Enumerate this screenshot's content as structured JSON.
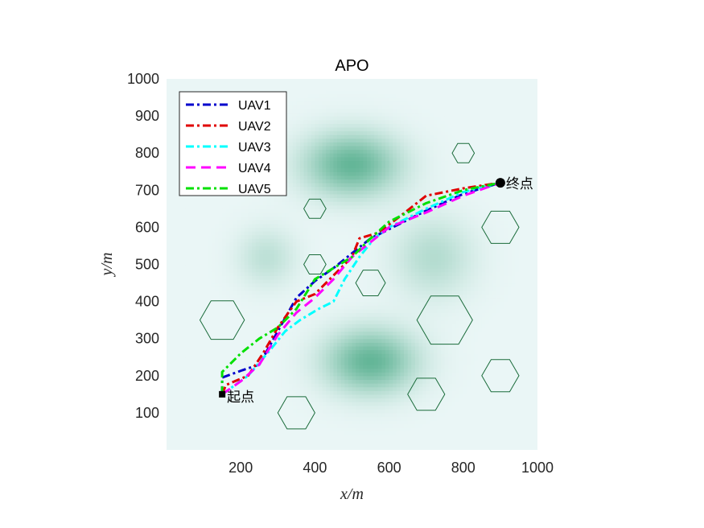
{
  "chart_data": {
    "type": "line",
    "title": "APO",
    "xlabel": "x/m",
    "ylabel": "y/m",
    "xlim": [
      0,
      1000
    ],
    "ylim": [
      0,
      1000
    ],
    "xticks": [
      200,
      400,
      600,
      800,
      1000
    ],
    "yticks": [
      100,
      200,
      300,
      400,
      500,
      600,
      700,
      800,
      900,
      1000
    ],
    "grid": false,
    "legend_position": "top-left",
    "start": {
      "label": "起点",
      "x": 150,
      "y": 150
    },
    "goal": {
      "label": "终点",
      "x": 900,
      "y": 720
    },
    "threat_zones": [
      {
        "x": 500,
        "y": 770,
        "sx": 90,
        "sy": 60,
        "peak": 0.75
      },
      {
        "x": 550,
        "y": 240,
        "sx": 85,
        "sy": 60,
        "peak": 0.75
      },
      {
        "x": 270,
        "y": 520,
        "sx": 55,
        "sy": 55,
        "peak": 0.25
      },
      {
        "x": 720,
        "y": 520,
        "sx": 75,
        "sy": 75,
        "peak": 0.3
      }
    ],
    "obstacles": [
      {
        "x": 150,
        "y": 350,
        "r": 60
      },
      {
        "x": 350,
        "y": 100,
        "r": 50
      },
      {
        "x": 400,
        "y": 650,
        "r": 30
      },
      {
        "x": 400,
        "y": 500,
        "r": 30
      },
      {
        "x": 550,
        "y": 450,
        "r": 40
      },
      {
        "x": 750,
        "y": 350,
        "r": 75
      },
      {
        "x": 700,
        "y": 150,
        "r": 50
      },
      {
        "x": 800,
        "y": 800,
        "r": 30
      },
      {
        "x": 900,
        "y": 600,
        "r": 50
      },
      {
        "x": 900,
        "y": 200,
        "r": 50
      }
    ],
    "series": [
      {
        "name": "UAV1",
        "color": "#0000cc",
        "dash": "dashdot",
        "points": [
          [
            150,
            150
          ],
          [
            150,
            195
          ],
          [
            205,
            215
          ],
          [
            250,
            230
          ],
          [
            300,
            320
          ],
          [
            350,
            410
          ],
          [
            400,
            455
          ],
          [
            450,
            490
          ],
          [
            500,
            530
          ],
          [
            550,
            570
          ],
          [
            600,
            595
          ],
          [
            700,
            645
          ],
          [
            800,
            690
          ],
          [
            900,
            720
          ]
        ]
      },
      {
        "name": "UAV2",
        "color": "#e00000",
        "dash": "dashdot",
        "points": [
          [
            150,
            150
          ],
          [
            160,
            175
          ],
          [
            220,
            200
          ],
          [
            260,
            260
          ],
          [
            300,
            330
          ],
          [
            350,
            400
          ],
          [
            400,
            420
          ],
          [
            440,
            460
          ],
          [
            500,
            520
          ],
          [
            520,
            570
          ],
          [
            570,
            585
          ],
          [
            630,
            630
          ],
          [
            700,
            685
          ],
          [
            800,
            705
          ],
          [
            900,
            720
          ]
        ]
      },
      {
        "name": "UAV3",
        "color": "#00ffff",
        "dash": "dashdot",
        "points": [
          [
            150,
            150
          ],
          [
            220,
            200
          ],
          [
            280,
            270
          ],
          [
            320,
            320
          ],
          [
            360,
            350
          ],
          [
            410,
            380
          ],
          [
            450,
            400
          ],
          [
            480,
            460
          ],
          [
            520,
            520
          ],
          [
            560,
            570
          ],
          [
            600,
            600
          ],
          [
            700,
            650
          ],
          [
            800,
            695
          ],
          [
            900,
            720
          ]
        ]
      },
      {
        "name": "UAV4",
        "color": "#ff00ff",
        "dash": "dash",
        "points": [
          [
            150,
            150
          ],
          [
            200,
            185
          ],
          [
            250,
            230
          ],
          [
            300,
            310
          ],
          [
            350,
            370
          ],
          [
            400,
            410
          ],
          [
            450,
            460
          ],
          [
            500,
            520
          ],
          [
            550,
            560
          ],
          [
            600,
            600
          ],
          [
            700,
            640
          ],
          [
            800,
            685
          ],
          [
            900,
            720
          ]
        ]
      },
      {
        "name": "UAV5",
        "color": "#00e000",
        "dash": "dashdot",
        "points": [
          [
            150,
            150
          ],
          [
            150,
            210
          ],
          [
            200,
            260
          ],
          [
            250,
            300
          ],
          [
            300,
            330
          ],
          [
            350,
            380
          ],
          [
            400,
            460
          ],
          [
            450,
            490
          ],
          [
            500,
            520
          ],
          [
            550,
            570
          ],
          [
            600,
            615
          ],
          [
            700,
            665
          ],
          [
            800,
            700
          ],
          [
            900,
            720
          ]
        ]
      }
    ]
  }
}
